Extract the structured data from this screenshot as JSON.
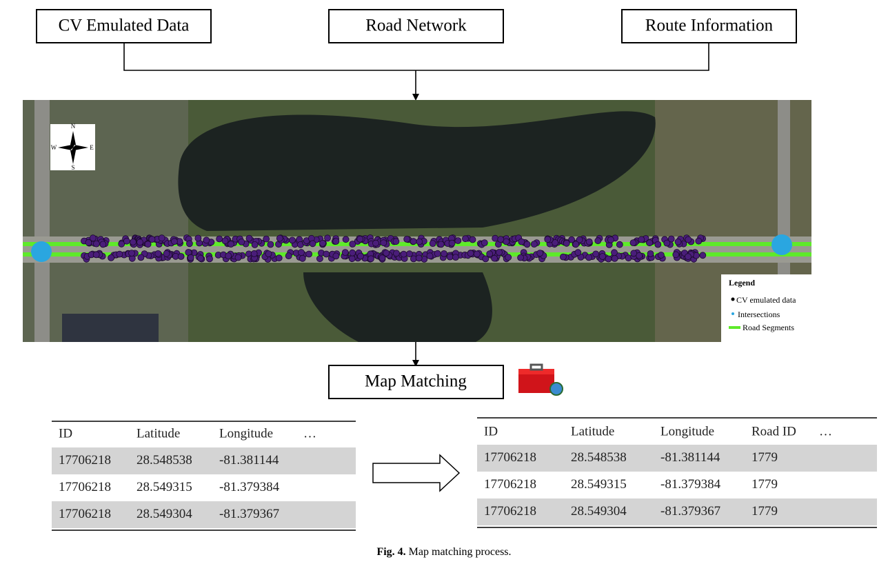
{
  "inputs": [
    "CV Emulated Data",
    "Road Network",
    "Route Information"
  ],
  "map": {
    "compass": {
      "north": "N",
      "south": "S",
      "east": "E",
      "west": "W"
    },
    "legend": {
      "title": "Legend",
      "items": [
        "CV emulated data",
        "Intersections",
        "Road Segments"
      ]
    }
  },
  "process": {
    "label": "Map Matching"
  },
  "input_table": {
    "headers": [
      "ID",
      "Latitude",
      "Longitude",
      "…"
    ],
    "rows": [
      [
        "17706218",
        "28.548538",
        "-81.381144"
      ],
      [
        "17706218",
        "28.549315",
        "-81.379384"
      ],
      [
        "17706218",
        "28.549304",
        "-81.379367"
      ]
    ]
  },
  "output_table": {
    "headers": [
      "ID",
      "Latitude",
      "Longitude",
      "Road ID",
      "…"
    ],
    "rows": [
      [
        "17706218",
        "28.548538",
        "-81.381144",
        "1779"
      ],
      [
        "17706218",
        "28.549315",
        "-81.379384",
        "1779"
      ],
      [
        "17706218",
        "28.549304",
        "-81.379367",
        "1779"
      ]
    ]
  },
  "caption": {
    "label": "Fig. 4.",
    "text": "Map matching process."
  }
}
